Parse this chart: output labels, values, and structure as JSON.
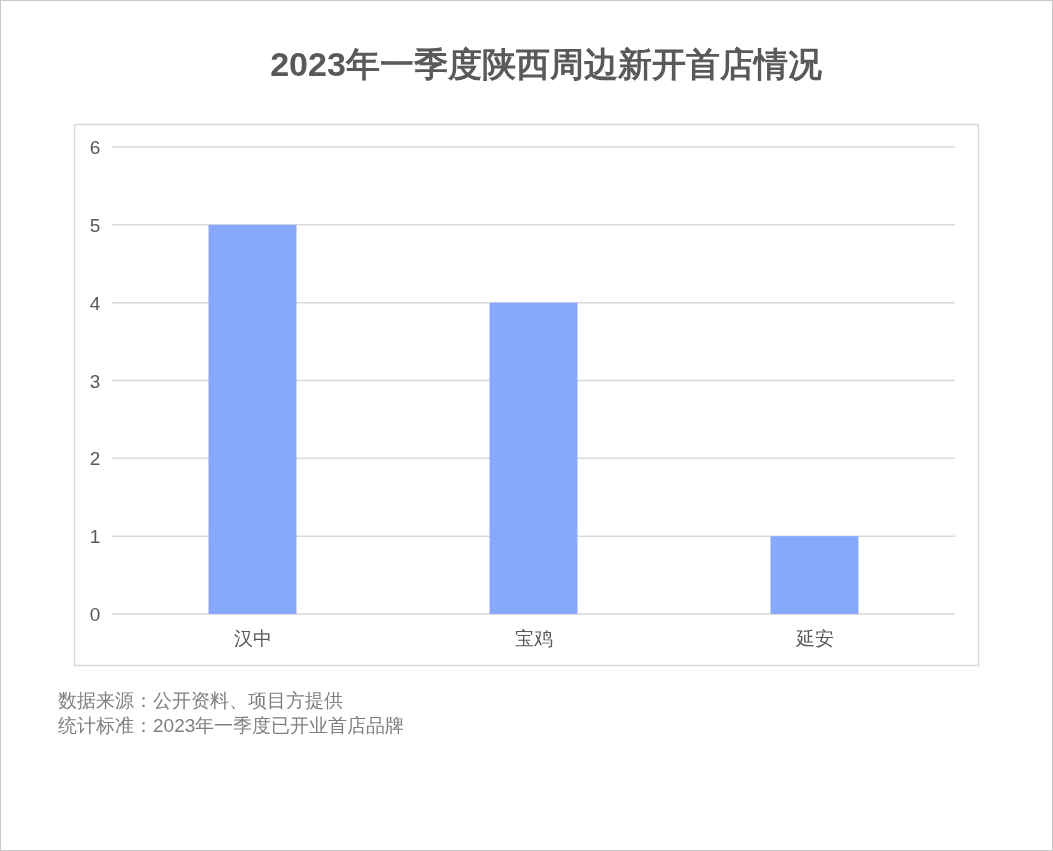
{
  "chart_data": {
    "type": "bar",
    "title": "2023年一季度陕西周边新开首店情况",
    "categories": [
      "汉中",
      "宝鸡",
      "延安"
    ],
    "values": [
      5,
      4,
      1
    ],
    "color": "#88a8fb",
    "ylim": [
      0,
      6
    ],
    "yticks": [
      0,
      1,
      2,
      3,
      4,
      5,
      6
    ],
    "grid": "y",
    "annotations": [
      "数据来源：公开资料、项目方提供",
      "统计标准：2023年一季度已开业首店品牌"
    ]
  }
}
